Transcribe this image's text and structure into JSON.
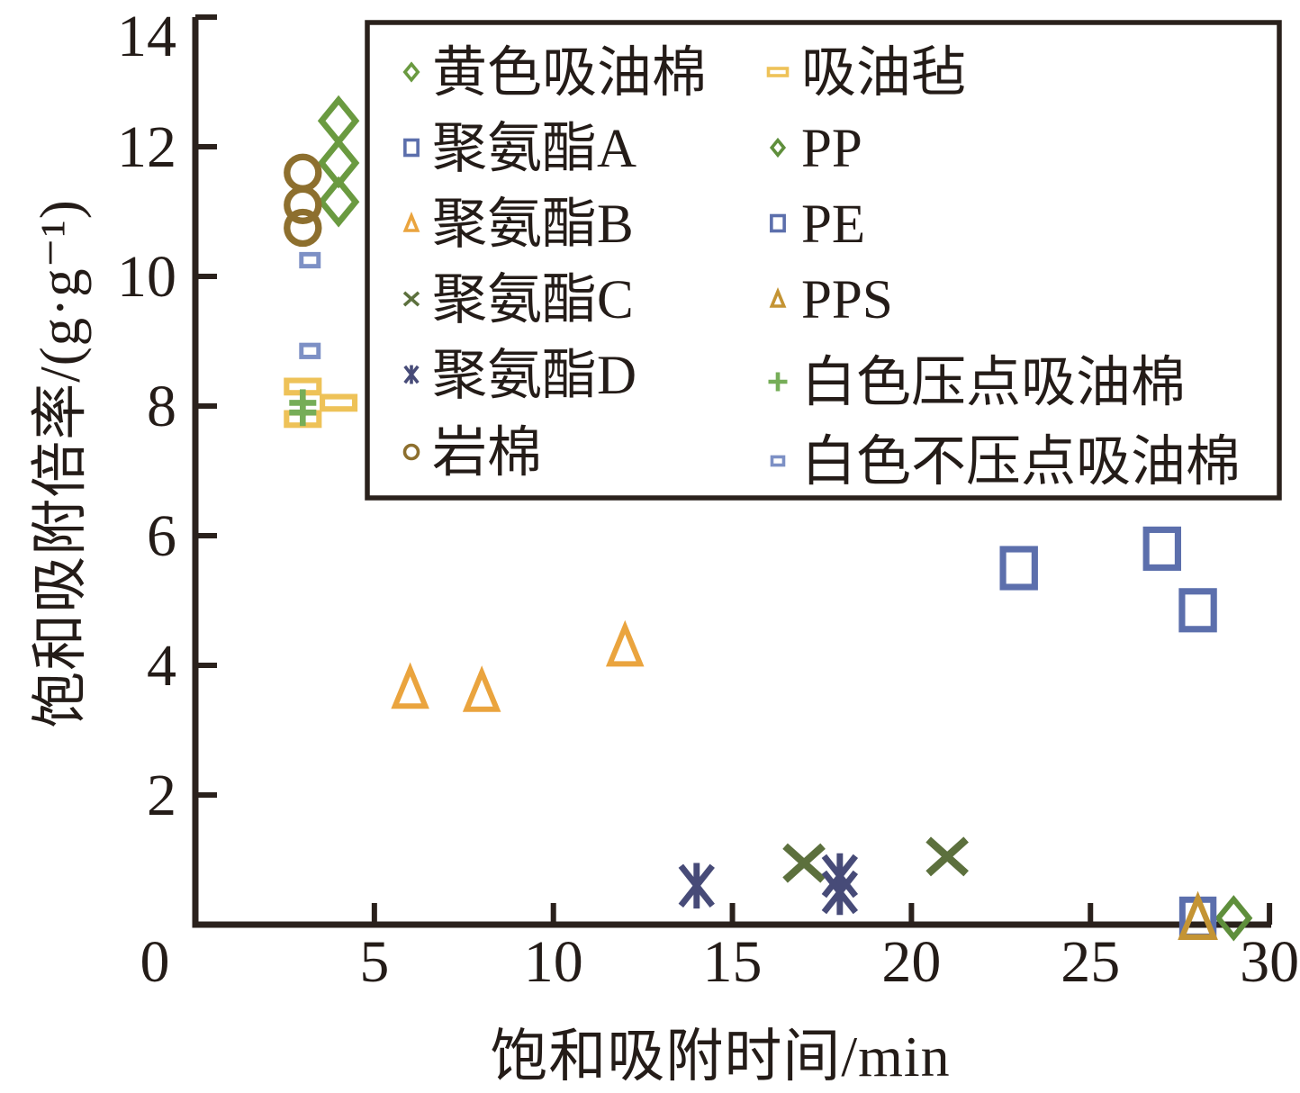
{
  "chart_data": {
    "type": "scatter",
    "title": "",
    "xlabel": "饱和吸附时间/min",
    "ylabel": "饱和吸附倍率/(g·g⁻¹)",
    "xlim": [
      0,
      30
    ],
    "ylim": [
      0,
      14
    ],
    "origin_label": "0",
    "xticks": [
      5,
      10,
      15,
      20,
      25,
      30
    ],
    "yticks": [
      2,
      4,
      6,
      8,
      10,
      12,
      14
    ],
    "grid": false,
    "legend_position": "top-inside",
    "axis_color": "#2a211c",
    "text_color": "#241c18",
    "series": [
      {
        "key": "yellow-oil-cotton",
        "name": "黄色吸油棉",
        "marker": "diamond",
        "color": "#6a9a40",
        "size": 42,
        "legend_size": 16,
        "points": [
          [
            4,
            12.4
          ],
          [
            4,
            11.75
          ],
          [
            4,
            11.15
          ]
        ]
      },
      {
        "key": "pu-a",
        "name": "聚氨酯A",
        "marker": "square",
        "color": "#5c6fac",
        "size": 42,
        "legend_size": 17,
        "points": [
          [
            23,
            5.5
          ],
          [
            27,
            5.8
          ],
          [
            28,
            4.85
          ]
        ]
      },
      {
        "key": "pu-b",
        "name": "聚氨酯B",
        "marker": "triangle",
        "color": "#eaa43e",
        "size": 40,
        "legend_size": 16,
        "points": [
          [
            6,
            3.65
          ],
          [
            8,
            3.6
          ],
          [
            12,
            4.3
          ]
        ]
      },
      {
        "key": "pu-c",
        "name": "聚氨酯C",
        "marker": "xcross",
        "color": "#5c703d",
        "size": 42,
        "legend_size": 16,
        "points": [
          [
            17,
            0.95
          ],
          [
            21,
            1.05
          ]
        ]
      },
      {
        "key": "pu-d",
        "name": "聚氨酯D",
        "marker": "asterisk",
        "color": "#474b78",
        "size": 46,
        "legend_size": 19,
        "points": [
          [
            14,
            0.6
          ],
          [
            18,
            0.75
          ],
          [
            18,
            0.5
          ]
        ]
      },
      {
        "key": "rock-wool",
        "name": "岩棉",
        "marker": "circle",
        "color": "#8d6f2e",
        "size": 35,
        "legend_size": 15,
        "points": [
          [
            3,
            11.6
          ],
          [
            3,
            11.1
          ],
          [
            3,
            10.75
          ]
        ]
      },
      {
        "key": "oil-felt",
        "name": "吸油毡",
        "marker": "hbar",
        "color": "#eec258",
        "size": 36,
        "legend_size": 21,
        "points": [
          [
            3,
            8.3
          ],
          [
            3,
            7.8
          ],
          [
            4,
            8.05
          ]
        ]
      },
      {
        "key": "pp",
        "name": "PP",
        "marker": "diamond",
        "color": "#5f8f3c",
        "size": 38,
        "legend_size": 15,
        "points": [
          [
            29,
            0.1
          ]
        ]
      },
      {
        "key": "pe",
        "name": "PE",
        "marker": "square",
        "color": "#5c6fac",
        "size": 41,
        "legend_size": 17,
        "points": [
          [
            28,
            0.1
          ]
        ]
      },
      {
        "key": "pps",
        "name": "PPS",
        "marker": "triangle",
        "color": "#c49434",
        "size": 42,
        "legend_size": 16,
        "points": [
          [
            28,
            0.1
          ]
        ]
      },
      {
        "key": "white-pressed-cotton",
        "name": "白色压点吸油棉",
        "marker": "plus",
        "color": "#76ad58",
        "size": 30,
        "legend_size": 21,
        "points": [
          [
            3,
            8.05
          ],
          [
            3,
            7.9
          ]
        ]
      },
      {
        "key": "white-unpressed-cotton",
        "name": "白色不压点吸油棉",
        "marker": "smallrect",
        "color": "#7d90c5",
        "size": 19,
        "legend_size": 13,
        "points": [
          [
            3.2,
            10.25
          ],
          [
            3.2,
            8.85
          ]
        ]
      }
    ]
  }
}
